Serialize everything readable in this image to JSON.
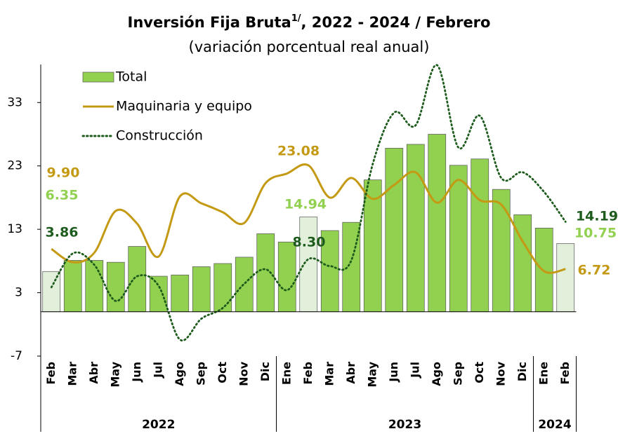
{
  "chart_data": {
    "type": "bar",
    "title": "Inversión Fija Bruta",
    "title_sup": "1/",
    "title_rest": ", 2022 - 2024 / Febrero",
    "subtitle": "(variación porcentual real anual)",
    "categories": [
      "Feb",
      "Mar",
      "Abr",
      "May",
      "Jun",
      "Jul",
      "Ago",
      "Sep",
      "Oct",
      "Nov",
      "Dic",
      "Ene",
      "Feb",
      "Mar",
      "Abr",
      "May",
      "Jun",
      "Jul",
      "Ago",
      "Sep",
      "Oct",
      "Nov",
      "Dic",
      "Ene",
      "Feb"
    ],
    "groups": [
      {
        "label": "2022",
        "size": 11
      },
      {
        "label": "2023",
        "size": 12
      },
      {
        "label": "2024",
        "size": 2
      }
    ],
    "ylim": [
      -7,
      39
    ],
    "yticks": [
      -7,
      3,
      13,
      23,
      33
    ],
    "series": [
      {
        "name": "Total",
        "type": "bar",
        "color": "#92d050",
        "highlight_color": "#e2efda",
        "highlight": [
          0,
          12,
          24
        ],
        "values": [
          6.35,
          8.1,
          8.1,
          7.8,
          10.3,
          5.6,
          5.8,
          7.1,
          7.6,
          8.6,
          12.3,
          11,
          14.94,
          12.8,
          14.1,
          20.8,
          25.8,
          26.4,
          28,
          23.1,
          24.1,
          19.3,
          15.3,
          13.2,
          10.75
        ],
        "value_labels": [
          "6.35",
          null,
          null,
          null,
          null,
          null,
          null,
          null,
          null,
          null,
          null,
          null,
          "14.94",
          null,
          null,
          null,
          null,
          null,
          null,
          null,
          null,
          null,
          null,
          null,
          "10.75"
        ],
        "label_color": "#92d050"
      },
      {
        "name": "Maquinaria y equipo",
        "type": "line",
        "style": "solid",
        "color": "#c49a14",
        "values": [
          9.9,
          7.8,
          9.3,
          15.9,
          13.9,
          8.7,
          18.2,
          17.1,
          15.7,
          14,
          20.3,
          21.8,
          23.08,
          18,
          21.1,
          17.8,
          20,
          22,
          17.2,
          20.8,
          17.6,
          16.9,
          11.1,
          6.4,
          6.72
        ],
        "value_labels": [
          "9.90",
          null,
          null,
          null,
          null,
          null,
          null,
          null,
          null,
          null,
          null,
          null,
          "23.08",
          null,
          null,
          null,
          null,
          null,
          null,
          null,
          null,
          null,
          null,
          null,
          "6.72"
        ],
        "label_color": "#c49a14"
      },
      {
        "name": "Construcción",
        "type": "line",
        "style": "dotted",
        "color": "#1e5c1e",
        "values": [
          3.86,
          9.2,
          7.4,
          1.7,
          5.6,
          4.1,
          -4.4,
          -1.1,
          0.6,
          4.4,
          6.7,
          3.4,
          8.3,
          7.2,
          8.1,
          23.3,
          31.4,
          29.4,
          38.9,
          25.9,
          30.9,
          21.1,
          22,
          18.9,
          14.19
        ],
        "value_labels": [
          "3.86",
          null,
          null,
          null,
          null,
          null,
          null,
          null,
          null,
          null,
          null,
          null,
          "8.30",
          null,
          null,
          null,
          null,
          null,
          null,
          null,
          null,
          null,
          null,
          null,
          "14.19"
        ],
        "label_color": "#1e5c1e"
      }
    ]
  }
}
